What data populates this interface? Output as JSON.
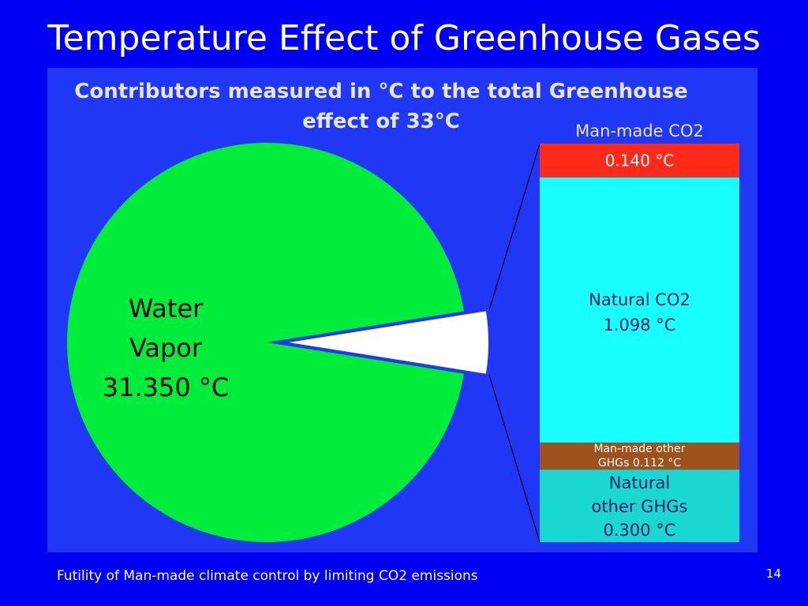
{
  "slide": {
    "title": "Temperature Effect of Greenhouse Gases",
    "footer": "Futility of Man-made climate control by limiting CO2 emissions",
    "page_number": "14"
  },
  "chart_data": [
    {
      "type": "pie",
      "title_lines": [
        "Contributors measured in °C to the total Greenhouse",
        "effect of 33°C"
      ],
      "total": 33,
      "slices": [
        {
          "name": "Water Vapor",
          "value": 31.35,
          "label_lines": [
            "Water",
            "Vapor",
            "31.350 °C"
          ],
          "color": "#00ee3a"
        },
        {
          "name": "Other",
          "value": 1.65,
          "color": "#ffffff",
          "exploded": true
        }
      ]
    },
    {
      "type": "bar",
      "stacked": true,
      "segments": [
        {
          "name": "Man-made CO2",
          "value": 0.14,
          "label_lines": [
            "0.140 °C"
          ],
          "color": "#ff2a1a",
          "text_color": "#ffffff"
        },
        {
          "name": "Natural CO2",
          "value": 1.098,
          "label_lines": [
            "Natural CO2",
            "1.098 °C"
          ],
          "color": "#18ffff",
          "text_color": "#1a1a66"
        },
        {
          "name": "Man-made other GHGs",
          "value": 0.112,
          "label_lines": [
            "Man-made other",
            "GHGs 0.112 °C"
          ],
          "color": "#a0521c",
          "text_color": "#ffffff"
        },
        {
          "name": "Natural other GHGs",
          "value": 0.3,
          "label_lines": [
            "Natural",
            "other GHGs",
            "0.300 °C"
          ],
          "color": "#19d8d2",
          "text_color": "#1a1a66"
        }
      ],
      "top_label": "Man-made CO2"
    }
  ],
  "colors": {
    "slide_background": "#0000f5",
    "plot_background": "#2038f5",
    "title_text": "#ffffff",
    "chart_title_text": "#e6e6f0",
    "connector_line": "#000000"
  }
}
